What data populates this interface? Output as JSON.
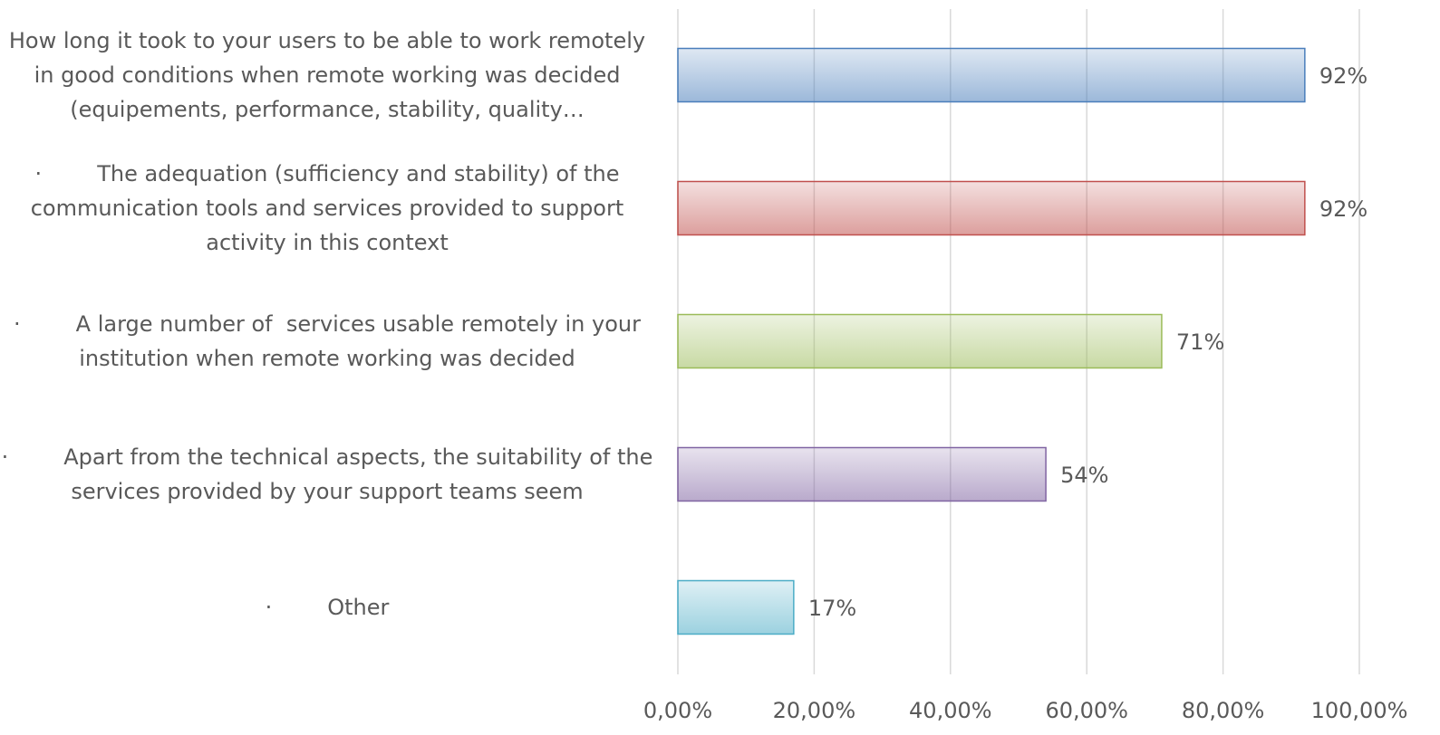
{
  "chart_data": {
    "type": "hbar",
    "categories": [
      "How long it took to your users to be able to work remotely in good conditions when remote working was decided (equipements, performance, stability, quality…",
      "·        The adequation (sufficiency and stability) of the communication tools and services provided to support activity in this context",
      "·        A large number of  services usable remotely in your institution when remote working was decided",
      "·        Apart from the technical aspects, the suitability of the services provided by your support teams seem",
      "·        Other"
    ],
    "values": [
      92,
      92,
      71,
      54,
      17
    ],
    "value_labels": [
      "92%",
      "92%",
      "71%",
      "54%",
      "17%"
    ],
    "colors": [
      "#4a7ebb",
      "#c0504d",
      "#9bbb59",
      "#8064a2",
      "#4bacc6"
    ],
    "xlim": [
      0,
      100
    ],
    "xticks": [
      {
        "value": 0,
        "label": "0,00%"
      },
      {
        "value": 20,
        "label": "20,00%"
      },
      {
        "value": 40,
        "label": "40,00%"
      },
      {
        "value": 60,
        "label": "60,00%"
      },
      {
        "value": 80,
        "label": "80,00%"
      },
      {
        "value": 100,
        "label": "100,00%"
      }
    ],
    "grid": true
  }
}
